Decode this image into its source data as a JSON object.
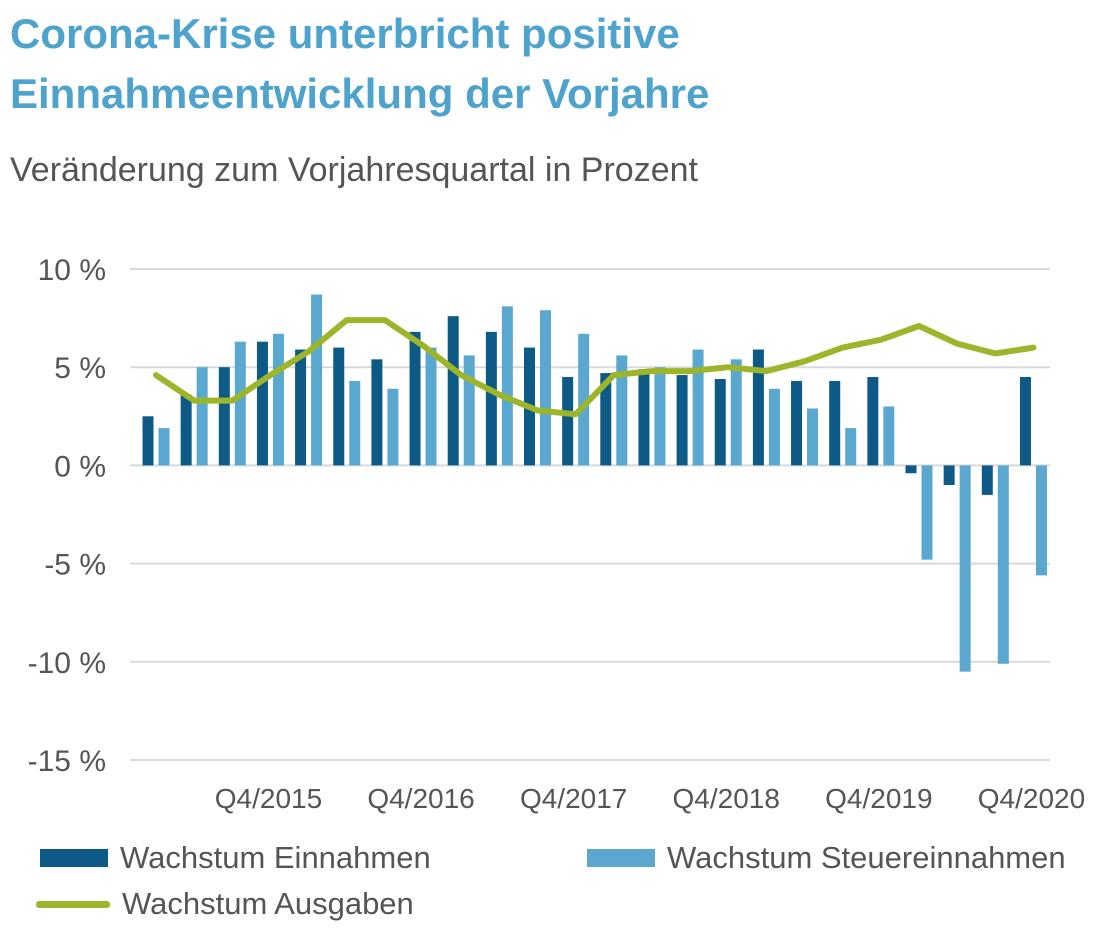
{
  "chart_data": {
    "type": "bar",
    "title": [
      "Corona-Krise unterbricht positive",
      "Einnahmeentwicklung der Vorjahre"
    ],
    "subtitle": "Veränderung zum Vorjahresquartal in Prozent",
    "ylim": [
      -15,
      10
    ],
    "yticks": [
      10,
      5,
      0,
      -5,
      -10,
      -15
    ],
    "ytick_labels": [
      "10 %",
      "5 %",
      "0 %",
      "-5 %",
      "-10 %",
      "-15 %"
    ],
    "grid": true,
    "legend_position": "bottom",
    "categories": [
      "Q1/2015",
      "Q2/2015",
      "Q3/2015",
      "Q4/2015",
      "Q1/2016",
      "Q2/2016",
      "Q3/2016",
      "Q4/2016",
      "Q1/2017",
      "Q2/2017",
      "Q3/2017",
      "Q4/2017",
      "Q1/2018",
      "Q2/2018",
      "Q3/2018",
      "Q4/2018",
      "Q1/2019",
      "Q2/2019",
      "Q3/2019",
      "Q4/2019",
      "Q1/2020",
      "Q2/2020",
      "Q3/2020",
      "Q4/2020"
    ],
    "x_tick_labels": [
      {
        "index": 3,
        "label": "Q4/2015"
      },
      {
        "index": 7,
        "label": "Q4/2016"
      },
      {
        "index": 11,
        "label": "Q4/2017"
      },
      {
        "index": 15,
        "label": "Q4/2018"
      },
      {
        "index": 19,
        "label": "Q4/2019"
      },
      {
        "index": 23,
        "label": "Q4/2020"
      }
    ],
    "series": [
      {
        "name": "Wachstum Einnahmen",
        "type": "bar",
        "color": "#0d5a86",
        "values": [
          2.5,
          3.6,
          5.0,
          6.3,
          5.9,
          6.0,
          5.4,
          6.8,
          7.6,
          6.8,
          6.0,
          4.5,
          4.7,
          4.9,
          4.6,
          4.4,
          5.9,
          4.3,
          4.3,
          4.5,
          -0.4,
          -1.0,
          -1.5,
          4.5
        ]
      },
      {
        "name": "Wachstum Steuereinnahmen",
        "type": "bar",
        "color": "#5aa8d0",
        "values": [
          1.9,
          5.0,
          6.3,
          6.7,
          8.7,
          4.3,
          3.9,
          6.0,
          5.6,
          8.1,
          7.9,
          6.7,
          5.6,
          5.0,
          5.9,
          5.4,
          3.9,
          2.9,
          1.9,
          3.0,
          -4.8,
          -10.5,
          -10.1,
          -5.6
        ]
      },
      {
        "name": "Wachstum Ausgaben",
        "type": "line",
        "color": "#9cb52a",
        "values": [
          4.6,
          3.3,
          3.3,
          4.6,
          5.8,
          7.4,
          7.4,
          6.1,
          4.6,
          3.6,
          2.8,
          2.6,
          4.6,
          4.8,
          4.8,
          5.0,
          4.8,
          5.3,
          6.0,
          6.4,
          7.1,
          6.2,
          5.7,
          6.0
        ]
      }
    ]
  }
}
